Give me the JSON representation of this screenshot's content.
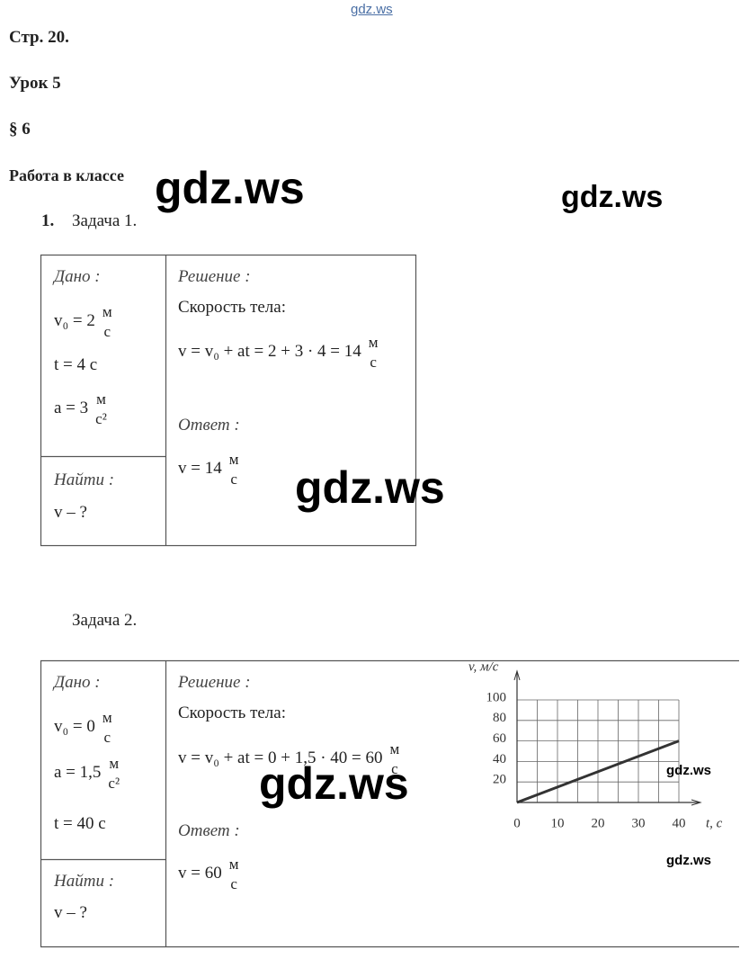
{
  "header": {
    "page": "Стр. 20.",
    "lesson": "Урок 5",
    "paragraph": "§ 6",
    "section": "Работа в классе"
  },
  "watermarks": [
    "gdz.ws",
    "gdz.ws",
    "gdz.ws",
    "gdz.ws",
    "gdz.ws",
    "gdz.ws",
    "gdz.ws"
  ],
  "task1": {
    "number": "1.",
    "title": "Задача 1.",
    "given_label": "Дано :",
    "given": [
      {
        "expr": "v₀ = 2",
        "num": "м",
        "den": "с"
      },
      {
        "expr": "t = 4 с"
      },
      {
        "expr": "a = 3",
        "num": "м",
        "den": "с²"
      }
    ],
    "find_label": "Найти :",
    "find": "v – ?",
    "solution_label": "Решение :",
    "solution_text": "Скорость тела:",
    "formula": {
      "expr": "v = v₀ + at = 2 + 3 · 4 = 14",
      "num": "м",
      "den": "с"
    },
    "answer_label": "Ответ :",
    "answer": {
      "expr": "v = 14",
      "num": "м",
      "den": "с"
    }
  },
  "task2": {
    "title": "Задача 2.",
    "given_label": "Дано :",
    "given": [
      {
        "expr": "v₀ = 0",
        "num": "м",
        "den": "с"
      },
      {
        "expr": "a = 1,5",
        "num": "м",
        "den": "с²"
      },
      {
        "expr": "t = 40 с"
      }
    ],
    "find_label": "Найти :",
    "find": "v – ?",
    "solution_label": "Решение :",
    "solution_text": "Скорость тела:",
    "formula": {
      "expr": "v = v₀ + at = 0 + 1,5 · 40 = 60",
      "num": "м",
      "den": "с"
    },
    "answer_label": "Ответ :",
    "answer": {
      "expr": "v = 60",
      "num": "м",
      "den": "с"
    }
  },
  "chart_data": {
    "type": "line",
    "x_label": "t, с",
    "y_label": "v, м/с",
    "x": [
      0,
      40
    ],
    "series": [
      {
        "color": "#333333",
        "values": [
          0,
          60
        ]
      }
    ],
    "xlim": [
      0,
      40
    ],
    "ylim": [
      0,
      100
    ],
    "xticks": [
      0,
      10,
      20,
      30,
      40
    ],
    "xminor": [
      5,
      15,
      25,
      35
    ],
    "yticks": [
      20,
      40,
      60,
      80,
      100
    ],
    "grid": true
  }
}
